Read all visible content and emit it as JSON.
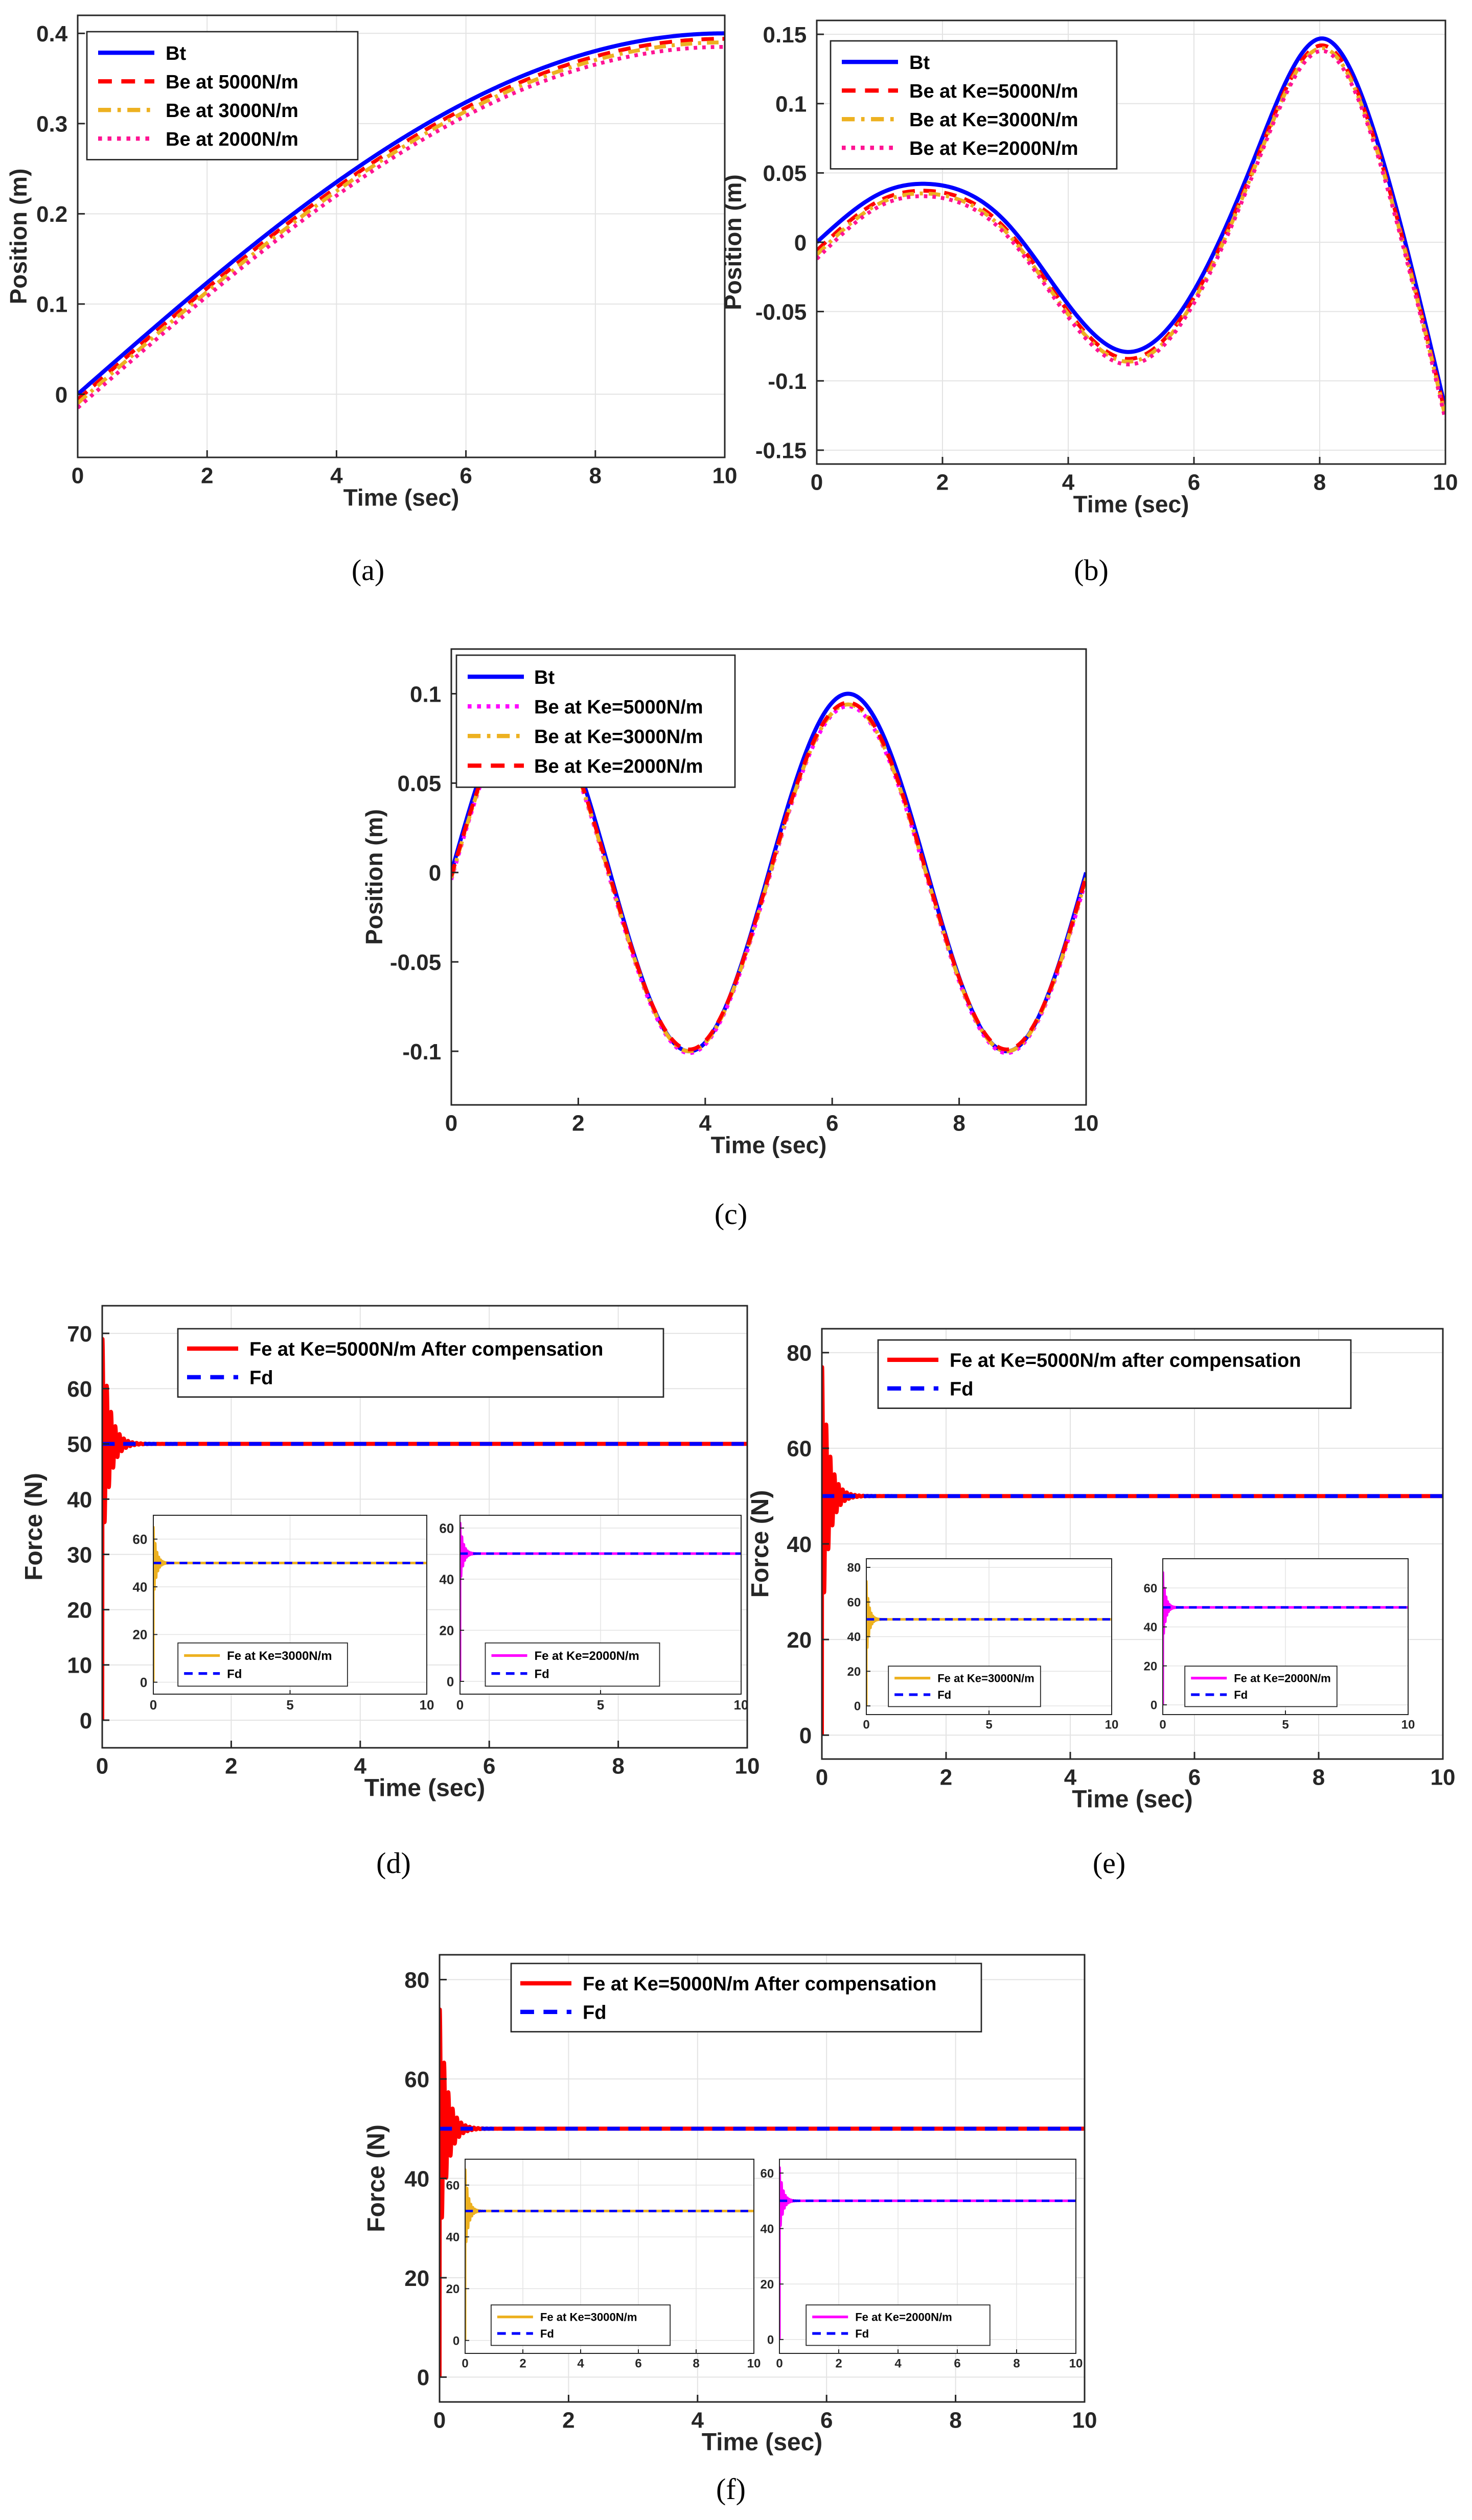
{
  "colors": {
    "blue": "#0000ff",
    "red": "#ff0000",
    "orange": "#edb120",
    "magenta": "#ff00ff",
    "deep_pink": "#ff1493",
    "grid": "#e3e3e3",
    "axis": "#262626"
  },
  "chart_data": [
    {
      "id": "a",
      "type": "line",
      "caption": "(a)",
      "xlabel": "Time (sec)",
      "ylabel": "Position (m)",
      "xlim": [
        0,
        10
      ],
      "ylim": [
        -0.07,
        0.42
      ],
      "xticks": [
        0,
        2,
        4,
        6,
        8,
        10
      ],
      "xtick_labels": [
        "0",
        "2",
        "4",
        "6",
        "8",
        "10"
      ],
      "yticks": [
        0,
        0.1,
        0.2,
        0.3,
        0.4
      ],
      "ytick_labels": [
        "0",
        "0.1",
        "0.2",
        "0.3",
        "0.4"
      ],
      "legend_position": "top-left",
      "grid": true,
      "series": [
        {
          "name": "Bt",
          "color": "blue",
          "style": "solid",
          "formula": "sine",
          "amplitude": 0.4,
          "omega": 0.1571,
          "offset": 0
        },
        {
          "name": "Be at 5000N/m",
          "color": "red",
          "style": "dash",
          "formula": "sine",
          "amplitude": 0.4,
          "omega": 0.1571,
          "offset": -0.006
        },
        {
          "name": "Be at 3000N/m",
          "color": "orange",
          "style": "dashdot",
          "formula": "sine",
          "amplitude": 0.4,
          "omega": 0.1571,
          "offset": -0.01
        },
        {
          "name": "Be at 2000N/m",
          "color": "deep_pink",
          "style": "dot",
          "formula": "sine",
          "amplitude": 0.4,
          "omega": 0.1571,
          "offset": -0.015
        }
      ]
    },
    {
      "id": "b",
      "type": "line",
      "caption": "(b)",
      "xlabel": "Time (sec)",
      "ylabel": "Position (m)",
      "xlim": [
        0,
        10
      ],
      "ylim": [
        -0.16,
        0.16
      ],
      "xticks": [
        0,
        2,
        4,
        6,
        8,
        10
      ],
      "xtick_labels": [
        "0",
        "2",
        "4",
        "6",
        "8",
        "10"
      ],
      "yticks": [
        -0.15,
        -0.1,
        -0.05,
        0,
        0.05,
        0.1,
        0.15
      ],
      "ytick_labels": [
        "-0.15",
        "-0.1",
        "-0.05",
        "0",
        "0.05",
        "0.1",
        "0.15"
      ],
      "legend_position": "top-left",
      "grid": true,
      "series": [
        {
          "name": "Bt",
          "color": "blue",
          "style": "solid",
          "formula": "spline",
          "x": [
            0,
            1,
            1.8,
            3,
            4,
            4.9,
            6,
            7,
            8.05,
            9,
            10
          ],
          "y": [
            0,
            0.035,
            0.042,
            0.015,
            -0.045,
            -0.079,
            -0.035,
            0.065,
            0.147,
            0.06,
            -0.12
          ]
        },
        {
          "name": "Be at Ke=5000N/m",
          "color": "red",
          "style": "dash",
          "formula": "spline",
          "x": [
            0,
            1,
            1.8,
            3,
            4,
            4.9,
            6,
            7,
            8.05,
            9,
            10
          ],
          "y": [
            -0.006,
            0.03,
            0.037,
            0.01,
            -0.05,
            -0.084,
            -0.04,
            0.06,
            0.142,
            0.055,
            -0.124
          ]
        },
        {
          "name": "Be at Ke=3000N/m",
          "color": "orange",
          "style": "dashdot",
          "formula": "spline",
          "x": [
            0,
            1,
            1.8,
            3,
            4,
            4.9,
            6,
            7,
            8.05,
            9,
            10
          ],
          "y": [
            -0.009,
            0.028,
            0.035,
            0.008,
            -0.052,
            -0.086,
            -0.042,
            0.058,
            0.14,
            0.053,
            -0.126
          ]
        },
        {
          "name": "Be at Ke=2000N/m",
          "color": "deep_pink",
          "style": "dot",
          "formula": "spline",
          "x": [
            0,
            1,
            1.8,
            3,
            4,
            4.9,
            6,
            7,
            8.05,
            9,
            10
          ],
          "y": [
            -0.012,
            0.026,
            0.033,
            0.006,
            -0.054,
            -0.088,
            -0.044,
            0.056,
            0.138,
            0.051,
            -0.128
          ]
        }
      ]
    },
    {
      "id": "c",
      "type": "line",
      "caption": "(c)",
      "xlabel": "Time (sec)",
      "ylabel": "Position (m)",
      "xlim": [
        0,
        10
      ],
      "ylim": [
        -0.13,
        0.125
      ],
      "xticks": [
        0,
        2,
        4,
        6,
        8,
        10
      ],
      "xtick_labels": [
        "0",
        "2",
        "4",
        "6",
        "8",
        "10"
      ],
      "yticks": [
        -0.1,
        -0.05,
        0,
        0.05,
        0.1
      ],
      "ytick_labels": [
        "-0.1",
        "-0.05",
        "0",
        "0.05",
        "0.1"
      ],
      "legend_position": "top-left",
      "grid": false,
      "series": [
        {
          "name": "Bt",
          "color": "blue",
          "style": "solid",
          "formula": "sine",
          "amplitude": 0.1,
          "omega": 1.2566,
          "offset": 0
        },
        {
          "name": "Be at Ke=5000N/m",
          "color": "magenta",
          "style": "dot",
          "formula": "sine",
          "amplitude": 0.097,
          "omega": 1.2566,
          "offset": -0.004
        },
        {
          "name": "Be at Ke=3000N/m",
          "color": "orange",
          "style": "dashdot",
          "formula": "sine",
          "amplitude": 0.097,
          "omega": 1.2566,
          "offset": -0.003
        },
        {
          "name": "Be at Ke=2000N/m",
          "color": "red",
          "style": "dash",
          "formula": "sine",
          "amplitude": 0.097,
          "omega": 1.2566,
          "offset": -0.002
        }
      ]
    },
    {
      "id": "d",
      "type": "line",
      "caption": "(d)",
      "xlabel": "Time (sec)",
      "ylabel": "Force (N)",
      "xlim": [
        0,
        10
      ],
      "ylim": [
        -5,
        75
      ],
      "xticks": [
        0,
        2,
        4,
        6,
        8,
        10
      ],
      "xtick_labels": [
        "0",
        "2",
        "4",
        "6",
        "8",
        "10"
      ],
      "yticks": [
        0,
        10,
        20,
        30,
        40,
        50,
        60,
        70
      ],
      "ytick_labels": [
        "0",
        "10",
        "20",
        "30",
        "40",
        "50",
        "60",
        "70"
      ],
      "legend_position": "top-center",
      "grid": true,
      "series": [
        {
          "name": "Fe at Ke=5000N/m After compensation",
          "color": "red",
          "style": "solid",
          "formula": "force",
          "steady": 50,
          "peak": 69
        },
        {
          "name": "Fd",
          "color": "blue",
          "style": "dash",
          "formula": "const",
          "value": 50
        }
      ],
      "insets": [
        {
          "xlim": [
            0,
            10
          ],
          "ylim": [
            -5,
            70
          ],
          "xticks": [
            0,
            5,
            10
          ],
          "xtick_labels": [
            "0",
            "5",
            "10"
          ],
          "yticks": [
            0,
            20,
            40,
            60
          ],
          "ytick_labels": [
            "0",
            "20",
            "40",
            "60"
          ],
          "series": [
            {
              "name": "Fe at Ke=3000N/m",
              "color": "orange",
              "style": "solid",
              "formula": "force",
              "steady": 50,
              "peak": 65
            },
            {
              "name": "Fd",
              "color": "blue",
              "style": "dash",
              "formula": "const",
              "value": 50
            }
          ]
        },
        {
          "xlim": [
            0,
            10
          ],
          "ylim": [
            -5,
            65
          ],
          "xticks": [
            0,
            5,
            10
          ],
          "xtick_labels": [
            "0",
            "5",
            "10"
          ],
          "yticks": [
            0,
            20,
            40,
            60
          ],
          "ytick_labels": [
            "0",
            "20",
            "40",
            "60"
          ],
          "series": [
            {
              "name": "Fe at Ke=2000N/m",
              "color": "magenta",
              "style": "solid",
              "formula": "force",
              "steady": 50,
              "peak": 62
            },
            {
              "name": "Fd",
              "color": "blue",
              "style": "dash",
              "formula": "const",
              "value": 50
            }
          ]
        }
      ]
    },
    {
      "id": "e",
      "type": "line",
      "caption": "(e)",
      "xlabel": "Time (sec)",
      "ylabel": "Force (N)",
      "xlim": [
        0,
        10
      ],
      "ylim": [
        -5,
        85
      ],
      "xticks": [
        0,
        2,
        4,
        6,
        8,
        10
      ],
      "xtick_labels": [
        "0",
        "2",
        "4",
        "6",
        "8",
        "10"
      ],
      "yticks": [
        0,
        20,
        40,
        60,
        80
      ],
      "ytick_labels": [
        "0",
        "20",
        "40",
        "60",
        "80"
      ],
      "legend_position": "top-center",
      "grid": true,
      "series": [
        {
          "name": "Fe at Ke=5000N/m after compensation",
          "color": "red",
          "style": "solid",
          "formula": "force",
          "steady": 50,
          "peak": 77
        },
        {
          "name": "Fd",
          "color": "blue",
          "style": "dash",
          "formula": "const",
          "value": 50
        }
      ],
      "insets": [
        {
          "xlim": [
            0,
            10
          ],
          "ylim": [
            -5,
            85
          ],
          "xticks": [
            0,
            5,
            10
          ],
          "xtick_labels": [
            "0",
            "5",
            "10"
          ],
          "yticks": [
            0,
            20,
            40,
            60,
            80
          ],
          "ytick_labels": [
            "0",
            "20",
            "40",
            "60",
            "80"
          ],
          "series": [
            {
              "name": "Fe at Ke=3000N/m",
              "color": "orange",
              "style": "solid",
              "formula": "force",
              "steady": 50,
              "peak": 72
            },
            {
              "name": "Fd",
              "color": "blue",
              "style": "dash",
              "formula": "const",
              "value": 50
            }
          ]
        },
        {
          "xlim": [
            0,
            10
          ],
          "ylim": [
            -5,
            75
          ],
          "xticks": [
            0,
            5,
            10
          ],
          "xtick_labels": [
            "0",
            "5",
            "10"
          ],
          "yticks": [
            0,
            20,
            40,
            60
          ],
          "ytick_labels": [
            "0",
            "20",
            "40",
            "60"
          ],
          "series": [
            {
              "name": "Fe at Ke=2000N/m",
              "color": "magenta",
              "style": "solid",
              "formula": "force",
              "steady": 50,
              "peak": 68
            },
            {
              "name": "Fd",
              "color": "blue",
              "style": "dash",
              "formula": "const",
              "value": 50
            }
          ]
        }
      ]
    },
    {
      "id": "f",
      "type": "line",
      "caption": "(f)",
      "xlabel": "Time (sec)",
      "ylabel": "Force (N)",
      "xlim": [
        0,
        10
      ],
      "ylim": [
        -5,
        85
      ],
      "xticks": [
        0,
        2,
        4,
        6,
        8,
        10
      ],
      "xtick_labels": [
        "0",
        "2",
        "4",
        "6",
        "8",
        "10"
      ],
      "yticks": [
        0,
        20,
        40,
        60,
        80
      ],
      "ytick_labels": [
        "0",
        "20",
        "40",
        "60",
        "80"
      ],
      "legend_position": "top-center",
      "grid": true,
      "series": [
        {
          "name": "Fe at Ke=5000N/m After compensation",
          "color": "red",
          "style": "solid",
          "formula": "force",
          "steady": 50,
          "peak": 74
        },
        {
          "name": "Fd",
          "color": "blue",
          "style": "dash",
          "formula": "const",
          "value": 50
        }
      ],
      "insets": [
        {
          "xlim": [
            0,
            10
          ],
          "ylim": [
            -5,
            70
          ],
          "xticks": [
            0,
            2,
            4,
            6,
            8,
            10
          ],
          "xtick_labels": [
            "0",
            "2",
            "4",
            "6",
            "8",
            "10"
          ],
          "yticks": [
            0,
            20,
            40,
            60
          ],
          "ytick_labels": [
            "0",
            "20",
            "40",
            "60"
          ],
          "series": [
            {
              "name": "Fe at Ke=3000N/m",
              "color": "orange",
              "style": "solid",
              "formula": "force",
              "steady": 50,
              "peak": 66
            },
            {
              "name": "Fd",
              "color": "blue",
              "style": "dash",
              "formula": "const",
              "value": 50
            }
          ]
        },
        {
          "xlim": [
            0,
            10
          ],
          "ylim": [
            -5,
            65
          ],
          "xticks": [
            0,
            2,
            4,
            6,
            8,
            10
          ],
          "xtick_labels": [
            "0",
            "2",
            "4",
            "6",
            "8",
            "10"
          ],
          "yticks": [
            0,
            20,
            40,
            60
          ],
          "ytick_labels": [
            "0",
            "20",
            "40",
            "60"
          ],
          "series": [
            {
              "name": "Fe at Ke=2000N/m",
              "color": "magenta",
              "style": "solid",
              "formula": "force",
              "steady": 50,
              "peak": 62
            },
            {
              "name": "Fd",
              "color": "blue",
              "style": "dash",
              "formula": "const",
              "value": 50
            }
          ]
        }
      ]
    }
  ]
}
